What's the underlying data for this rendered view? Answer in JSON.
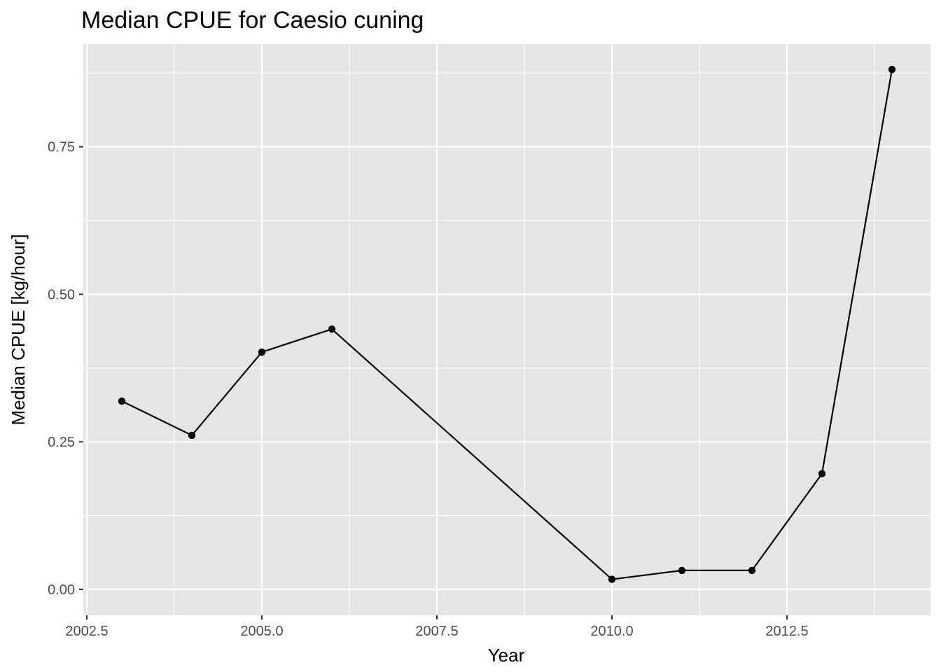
{
  "chart_data": {
    "type": "line",
    "title": "Median CPUE for Caesio cuning",
    "xlabel": "Year",
    "ylabel": "Median CPUE [kg/hour]",
    "xlim": [
      2002.45,
      2014.55
    ],
    "ylim": [
      -0.044,
      0.924
    ],
    "x_ticks": [
      2002.5,
      2005.0,
      2007.5,
      2010.0,
      2012.5
    ],
    "x_tick_labels": [
      "2002.5",
      "2005.0",
      "2007.5",
      "2010.0",
      "2012.5"
    ],
    "y_ticks": [
      0.0,
      0.25,
      0.5,
      0.75
    ],
    "y_tick_labels": [
      "0.00",
      "0.25",
      "0.50",
      "0.75"
    ],
    "grid": true,
    "series": [
      {
        "x": [
          2003,
          2004,
          2005,
          2006,
          2010,
          2011,
          2012,
          2013,
          2014
        ],
        "values": [
          0.319,
          0.261,
          0.402,
          0.441,
          0.017,
          0.032,
          0.032,
          0.196,
          0.881
        ]
      }
    ],
    "colors": {
      "panel": "#e5e5e5",
      "grid": "#ffffff",
      "line": "#000000",
      "point": "#000000"
    }
  }
}
